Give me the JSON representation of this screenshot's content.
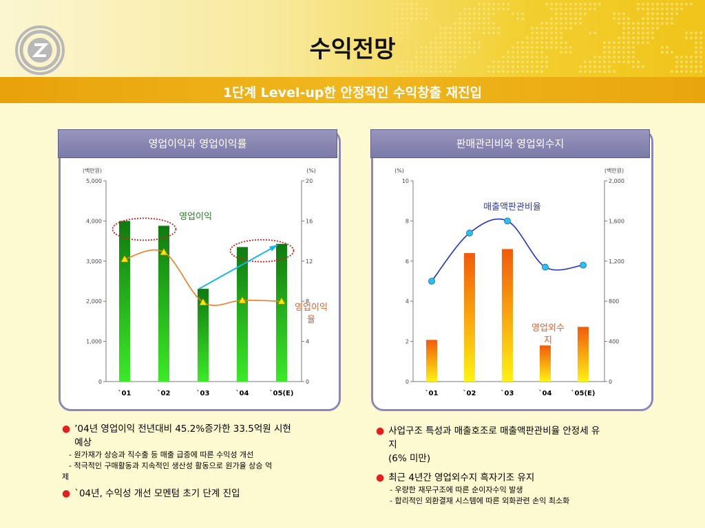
{
  "title": "수익전망",
  "subtitle": "1단계 Level-up한 안정적인 수익창출 재진입",
  "colors": {
    "accent_orange": "#eea30f",
    "panel_border": "#8a88b8",
    "bullet": "#e41f1f"
  },
  "logo_icon": "z-circle-logo-icon",
  "chart_data": [
    {
      "type": "bar",
      "title": "영업이익과 영업이익률",
      "categories": [
        "`01",
        "`02",
        "`03",
        "`04",
        "`05(E)"
      ],
      "y_unit_left": "(백만원)",
      "y_unit_right": "(%)",
      "ylim_left": [
        0,
        5000
      ],
      "ylim_right": [
        0,
        20
      ],
      "yticks_left": [
        "0",
        "1,000",
        "2,000",
        "3,000",
        "4,000",
        "5,000"
      ],
      "yticks_right": [
        "0",
        "4",
        "8",
        "12",
        "16",
        "20"
      ],
      "series": [
        {
          "name": "영업이익",
          "axis": "left",
          "kind": "bar",
          "values": [
            4000,
            3880,
            2310,
            3350,
            3430
          ]
        },
        {
          "name": "영업이익률",
          "axis": "right",
          "kind": "line",
          "values": [
            12.2,
            12.9,
            7.9,
            8.1,
            8.0
          ]
        }
      ],
      "annotations": {
        "bar_label": "영업이익",
        "line_label_1": "영업이익",
        "line_label_2": "율"
      }
    },
    {
      "type": "bar",
      "title": "판매관리비와 영업외수지",
      "categories": [
        "`01",
        "`02",
        "`03",
        "`04",
        "`05(E)"
      ],
      "y_unit_left": "(%)",
      "y_unit_right": "(백만원)",
      "ylim_left": [
        0,
        10
      ],
      "ylim_right": [
        0,
        2000
      ],
      "yticks_left": [
        "0",
        "2",
        "4",
        "6",
        "8",
        "10"
      ],
      "yticks_right": [
        "0",
        "400",
        "800",
        "1,200",
        "1,600",
        "2,000"
      ],
      "series": [
        {
          "name": "영업외수지",
          "axis": "right",
          "kind": "bar",
          "values": [
            415,
            1280,
            1320,
            360,
            545
          ]
        },
        {
          "name": "매출액판관비율",
          "axis": "left",
          "kind": "line",
          "values": [
            5.0,
            7.4,
            8.0,
            5.7,
            5.8
          ]
        }
      ],
      "annotations": {
        "line_label": "매출액판관비율",
        "bar_label_1": "영업외수",
        "bar_label_2": "지"
      }
    }
  ],
  "left_notes": {
    "b1_line1": "’04년 영업이익 전년대비 45.2%증가한 33.5억원 시현",
    "b1_line2": "예상",
    "b1_sub1": "- 원가재가 상승과 직수출 등 매출 급증에 따른 수익성 개선",
    "b1_sub2": "- 적극적인 구매활동과 지속적인 생산성 활동으로 원가율 상승 억",
    "b1_sub3": "제",
    "b2": "`04년, 수익성 개선 모멘텀 초기 단계 진입"
  },
  "right_notes": {
    "b1_line1": "사업구조 특성과 매출호조로 매출액판관비율 안정세 유",
    "b1_line2": "지",
    "b1_line3": "(6% 미만)",
    "b2": "최근 4년간 영업외수지 흑자기조 유지",
    "b2_sub1": "- 우량한 재무구조에 따른 순이자수익 발생",
    "b2_sub2": "- 합리적인 외환결재 시스템에 따른 외화관련 손익 최소화"
  }
}
